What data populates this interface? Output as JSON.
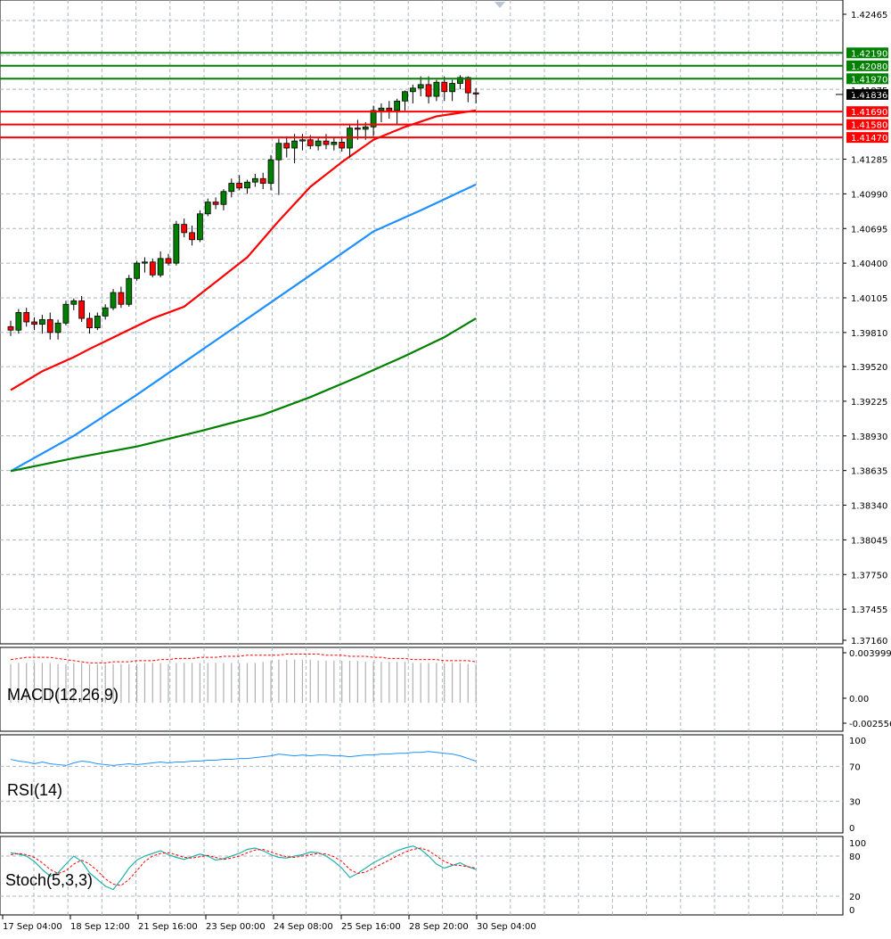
{
  "chart_data": {
    "type": "candlestick",
    "main": {
      "y_ticks": [
        "1.42465",
        "1.41285",
        "1.40990",
        "1.40695",
        "1.40400",
        "1.40105",
        "1.39810",
        "1.39520",
        "1.39225",
        "1.38930",
        "1.38635",
        "1.38340",
        "1.38045",
        "1.37750",
        "1.37455",
        "1.37160"
      ],
      "ylim": [
        1.3716,
        1.4264
      ],
      "current_price": "1.41836",
      "hidden_price_label": "1.41875",
      "resistance_levels": [
        {
          "value": 1.4219,
          "label": "1.42190",
          "color": "#008000"
        },
        {
          "value": 1.4208,
          "label": "1.42080",
          "color": "#008000"
        },
        {
          "value": 1.4197,
          "label": "1.41970",
          "color": "#008000"
        }
      ],
      "support_levels": [
        {
          "value": 1.4169,
          "label": "1.41690",
          "color": "#ff0000"
        },
        {
          "value": 1.4158,
          "label": "1.41580",
          "color": "#ff0000"
        },
        {
          "value": 1.4147,
          "label": "1.41470",
          "color": "#ff0000"
        }
      ],
      "candles": [
        [
          1.3986,
          1.3991,
          1.3978,
          1.3983
        ],
        [
          1.3983,
          1.4001,
          1.398,
          1.3998
        ],
        [
          1.3998,
          1.4002,
          1.3986,
          1.399
        ],
        [
          1.399,
          1.3994,
          1.3983,
          1.3988
        ],
        [
          1.3988,
          1.3996,
          1.398,
          1.3992
        ],
        [
          1.3992,
          1.3998,
          1.3975,
          1.3981
        ],
        [
          1.3981,
          1.3992,
          1.3975,
          1.3989
        ],
        [
          1.3989,
          1.4008,
          1.3987,
          1.4005
        ],
        [
          1.4005,
          1.401,
          1.4,
          1.4008
        ],
        [
          1.4008,
          1.4012,
          1.399,
          1.3993
        ],
        [
          1.3993,
          1.3998,
          1.398,
          1.3985
        ],
        [
          1.3985,
          1.3998,
          1.3983,
          1.3995
        ],
        [
          1.3995,
          1.4005,
          1.3992,
          1.4002
        ],
        [
          1.4002,
          1.4018,
          1.4,
          1.4015
        ],
        [
          1.4015,
          1.402,
          1.4002,
          1.4005
        ],
        [
          1.4005,
          1.403,
          1.4003,
          1.4027
        ],
        [
          1.4027,
          1.4042,
          1.4025,
          1.404
        ],
        [
          1.404,
          1.4045,
          1.4032,
          1.4041
        ],
        [
          1.4041,
          1.4044,
          1.4028,
          1.403
        ],
        [
          1.403,
          1.405,
          1.4028,
          1.4044
        ],
        [
          1.4044,
          1.4048,
          1.4038,
          1.404
        ],
        [
          1.404,
          1.4076,
          1.4038,
          1.4073
        ],
        [
          1.4073,
          1.4078,
          1.4062,
          1.4066
        ],
        [
          1.4066,
          1.4072,
          1.4055,
          1.406
        ],
        [
          1.406,
          1.4085,
          1.4058,
          1.4082
        ],
        [
          1.4082,
          1.4095,
          1.408,
          1.4092
        ],
        [
          1.4092,
          1.4096,
          1.4086,
          1.409
        ],
        [
          1.409,
          1.4103,
          1.4085,
          1.4101
        ],
        [
          1.4101,
          1.4112,
          1.4096,
          1.4108
        ],
        [
          1.4108,
          1.4115,
          1.4102,
          1.4104
        ],
        [
          1.4104,
          1.4111,
          1.4099,
          1.4109
        ],
        [
          1.4109,
          1.4116,
          1.4105,
          1.4112
        ],
        [
          1.4112,
          1.4117,
          1.4103,
          1.4108
        ],
        [
          1.4108,
          1.4132,
          1.4102,
          1.4128
        ],
        [
          1.4128,
          1.4146,
          1.4098,
          1.4142
        ],
        [
          1.4142,
          1.4148,
          1.413,
          1.4138
        ],
        [
          1.4138,
          1.415,
          1.4125,
          1.4144
        ],
        [
          1.4144,
          1.415,
          1.4136,
          1.4145
        ],
        [
          1.4145,
          1.4149,
          1.4137,
          1.414
        ],
        [
          1.414,
          1.4147,
          1.4136,
          1.4144
        ],
        [
          1.4144,
          1.415,
          1.4137,
          1.4141
        ],
        [
          1.4141,
          1.4147,
          1.4136,
          1.4143
        ],
        [
          1.4143,
          1.4148,
          1.4135,
          1.4138
        ],
        [
          1.4138,
          1.4158,
          1.413,
          1.4155
        ],
        [
          1.4155,
          1.4162,
          1.4145,
          1.4154
        ],
        [
          1.4154,
          1.416,
          1.4145,
          1.4156
        ],
        [
          1.4156,
          1.4174,
          1.4148,
          1.417
        ],
        [
          1.417,
          1.4176,
          1.416,
          1.4172
        ],
        [
          1.4172,
          1.4178,
          1.4163,
          1.417
        ],
        [
          1.417,
          1.418,
          1.4158,
          1.4178
        ],
        [
          1.4178,
          1.4187,
          1.417,
          1.4186
        ],
        [
          1.4186,
          1.4192,
          1.4176,
          1.4189
        ],
        [
          1.4189,
          1.4199,
          1.4182,
          1.4192
        ],
        [
          1.4192,
          1.4199,
          1.4176,
          1.4182
        ],
        [
          1.4182,
          1.4196,
          1.4178,
          1.4194
        ],
        [
          1.4194,
          1.4199,
          1.4178,
          1.4186
        ],
        [
          1.4186,
          1.4196,
          1.4178,
          1.4193
        ],
        [
          1.4193,
          1.42,
          1.4188,
          1.4198
        ],
        [
          1.4198,
          1.4199,
          1.4177,
          1.4185
        ],
        [
          1.4185,
          1.4189,
          1.4176,
          1.4184
        ]
      ],
      "moving_averages": [
        {
          "color": "#ff0000",
          "points": [
            [
              0,
              1.3932
            ],
            [
              4,
              1.3948
            ],
            [
              8,
              1.396
            ],
            [
              10,
              1.3967
            ],
            [
              14,
              1.398
            ],
            [
              18,
              1.3993
            ],
            [
              22,
              1.4003
            ],
            [
              26,
              1.4024
            ],
            [
              30,
              1.4045
            ],
            [
              34,
              1.4076
            ],
            [
              38,
              1.4105
            ],
            [
              42,
              1.4126
            ],
            [
              46,
              1.4145
            ],
            [
              50,
              1.4156
            ],
            [
              54,
              1.4165
            ],
            [
              59,
              1.417
            ]
          ]
        },
        {
          "color": "#1e90ff",
          "points": [
            [
              0,
              1.3863
            ],
            [
              8,
              1.3893
            ],
            [
              16,
              1.3928
            ],
            [
              24,
              1.3965
            ],
            [
              32,
              1.4002
            ],
            [
              40,
              1.4039
            ],
            [
              46,
              1.4067
            ],
            [
              52,
              1.4085
            ],
            [
              59,
              1.4107
            ]
          ]
        },
        {
          "color": "#008000",
          "points": [
            [
              0,
              1.3863
            ],
            [
              8,
              1.3874
            ],
            [
              16,
              1.3884
            ],
            [
              24,
              1.3897
            ],
            [
              32,
              1.3911
            ],
            [
              38,
              1.3926
            ],
            [
              44,
              1.3943
            ],
            [
              50,
              1.3961
            ],
            [
              55,
              1.3977
            ],
            [
              59,
              1.3993
            ]
          ]
        }
      ]
    },
    "macd": {
      "label": "MACD(12,26,9)",
      "y_ticks": [
        "0.003999",
        "0.00",
        "-0.002556"
      ],
      "ylim": [
        -0.002556,
        0.004999
      ],
      "histogram": [
        0.0035,
        0.0036,
        0.0036,
        0.0036,
        0.0036,
        0.0036,
        0.0035,
        0.0035,
        0.0036,
        0.0036,
        0.0035,
        0.0035,
        0.0035,
        0.0035,
        0.0035,
        0.0035,
        0.0035,
        0.0036,
        0.0036,
        0.0036,
        0.0035,
        0.0036,
        0.0036,
        0.0036,
        0.0036,
        0.0036,
        0.0036,
        0.0036,
        0.0036,
        0.0036,
        0.0036,
        0.0036,
        0.0037,
        0.0038,
        0.0039,
        0.0039,
        0.0039,
        0.0039,
        0.0039,
        0.0038,
        0.0038,
        0.0038,
        0.0038,
        0.0038,
        0.0038,
        0.0037,
        0.0037,
        0.0037,
        0.0037,
        0.0037,
        0.0037,
        0.0036,
        0.0036,
        0.0036,
        0.0036,
        0.0036,
        0.0036,
        0.0036,
        0.0035,
        0.0035
      ],
      "signal": [
        0.0039,
        0.004,
        0.0041,
        0.0041,
        0.0041,
        0.0041,
        0.004,
        0.0039,
        0.0038,
        0.0037,
        0.0036,
        0.0036,
        0.0036,
        0.0037,
        0.0037,
        0.0037,
        0.0038,
        0.0038,
        0.0038,
        0.0039,
        0.0039,
        0.004,
        0.004,
        0.004,
        0.0041,
        0.0041,
        0.0041,
        0.0042,
        0.0042,
        0.0042,
        0.0043,
        0.0043,
        0.0043,
        0.0043,
        0.0043,
        0.0044,
        0.0044,
        0.0044,
        0.0044,
        0.0044,
        0.0043,
        0.0043,
        0.0043,
        0.0042,
        0.0042,
        0.0042,
        0.0041,
        0.0041,
        0.004,
        0.004,
        0.004,
        0.0039,
        0.0039,
        0.0039,
        0.0039,
        0.0038,
        0.0038,
        0.0038,
        0.0038,
        0.0037
      ]
    },
    "rsi": {
      "label": "RSI(14)",
      "y_ticks": [
        "100",
        "70",
        "30",
        "0"
      ],
      "levels": [
        70,
        30
      ],
      "values": [
        78,
        76,
        75,
        73,
        75,
        73,
        72,
        71,
        74,
        76,
        75,
        73,
        72,
        71,
        72,
        73,
        72,
        73,
        74,
        75,
        74,
        75,
        75,
        76,
        76,
        77,
        77,
        78,
        78,
        79,
        79,
        80,
        81,
        82,
        84,
        83,
        82,
        83,
        82,
        83,
        83,
        82,
        82,
        81,
        82,
        83,
        83,
        84,
        84,
        85,
        85,
        86,
        86,
        87,
        86,
        85,
        84,
        82,
        79,
        76
      ]
    },
    "stoch": {
      "label": "Stoch(5,3,3)",
      "y_ticks": [
        "100",
        "80",
        "20",
        "0"
      ],
      "levels": [
        80,
        20
      ],
      "main": [
        85,
        83,
        80,
        72,
        60,
        50,
        55,
        68,
        80,
        72,
        55,
        45,
        35,
        30,
        45,
        62,
        74,
        80,
        84,
        88,
        82,
        78,
        75,
        79,
        83,
        80,
        74,
        76,
        80,
        84,
        90,
        92,
        88,
        82,
        78,
        77,
        80,
        82,
        86,
        85,
        80,
        72,
        62,
        48,
        54,
        62,
        70,
        76,
        82,
        88,
        92,
        95,
        90,
        80,
        68,
        62,
        66,
        70,
        64,
        60
      ],
      "signal": [
        82,
        84,
        82,
        78,
        70,
        60,
        54,
        58,
        68,
        74,
        68,
        58,
        46,
        38,
        36,
        45,
        58,
        72,
        80,
        84,
        85,
        82,
        78,
        77,
        79,
        81,
        78,
        75,
        77,
        80,
        85,
        89,
        90,
        86,
        82,
        79,
        78,
        80,
        82,
        84,
        83,
        79,
        72,
        60,
        54,
        56,
        62,
        68,
        74,
        80,
        86,
        90,
        92,
        88,
        80,
        72,
        67,
        66,
        64,
        62
      ]
    },
    "time_axis": [
      "17 Sep 04:00",
      "18 Sep 12:00",
      "21 Sep 16:00",
      "23 Sep 00:00",
      "24 Sep 08:00",
      "25 Sep 16:00",
      "28 Sep 20:00",
      "30 Sep 04:00"
    ],
    "colors": {
      "bull": "#008000",
      "bear": "#ff0000",
      "grid": "#a9b5c4",
      "frame": "#000000"
    }
  }
}
